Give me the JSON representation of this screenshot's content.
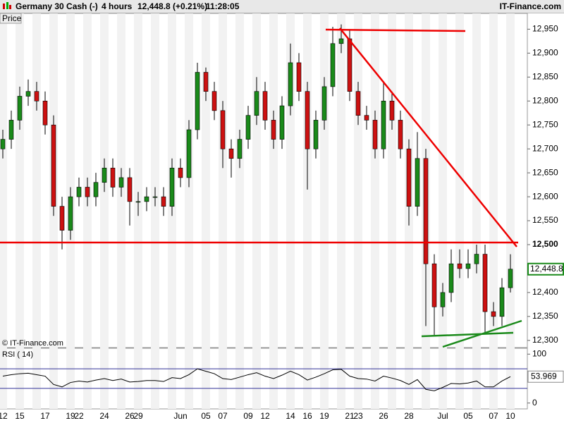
{
  "header": {
    "instrument": "Germany 30 Cash (-)",
    "interval": "4 hours",
    "quote": "12,448.8 (+0.21%)",
    "time": "11:28:05",
    "site": "IT-Finance.com"
  },
  "chart_data": [
    {
      "type": "candlestick",
      "axis_label": "Price",
      "watermark": "© IT-Finance.com",
      "categories": [
        "12",
        null,
        "15",
        null,
        null,
        "17",
        null,
        null,
        "19",
        "22",
        null,
        null,
        "24",
        null,
        null,
        "26",
        "29",
        null,
        null,
        null,
        null,
        "Jun",
        null,
        null,
        "05",
        null,
        "07",
        null,
        null,
        "09",
        null,
        "12",
        null,
        null,
        "14",
        null,
        "16",
        null,
        "19",
        null,
        null,
        "21",
        "23",
        null,
        null,
        "26",
        null,
        null,
        "28",
        null,
        null,
        null,
        "Jul",
        null,
        null,
        "05",
        null,
        null,
        "07",
        null,
        "10"
      ],
      "open": [
        12700,
        12720,
        12760,
        12810,
        12820,
        12800,
        12750,
        12580,
        12530,
        12600,
        12620,
        12600,
        12630,
        12660,
        12620,
        12640,
        12590,
        12590,
        12600,
        12600,
        12580,
        12660,
        12640,
        12740,
        12860,
        12820,
        12780,
        12700,
        12680,
        12720,
        12770,
        12820,
        12760,
        12720,
        12790,
        12880,
        12820,
        12700,
        12760,
        12830,
        12920,
        12930,
        12820,
        12770,
        12760,
        12700,
        12800,
        12760,
        12700,
        12580,
        12680,
        12460,
        12370,
        12400,
        12460,
        12450,
        12460,
        12480,
        12360,
        12350,
        12410
      ],
      "high": [
        12740,
        12780,
        12830,
        12845,
        12840,
        12820,
        12770,
        12600,
        12620,
        12640,
        12640,
        12650,
        12680,
        12680,
        12660,
        12660,
        12610,
        12620,
        12620,
        12620,
        12680,
        12680,
        12760,
        12880,
        12870,
        12840,
        12800,
        12720,
        12740,
        12790,
        12850,
        12840,
        12780,
        12810,
        12920,
        12900,
        12840,
        12780,
        12850,
        12955,
        12960,
        12950,
        12840,
        12790,
        12780,
        12840,
        12820,
        12780,
        12720,
        12735,
        12700,
        12480,
        12420,
        12490,
        12490,
        12490,
        12500,
        12500,
        12380,
        12430,
        12480
      ],
      "low": [
        12680,
        12700,
        12740,
        12790,
        12780,
        12730,
        12560,
        12490,
        12510,
        12580,
        12580,
        12580,
        12610,
        12600,
        12600,
        12540,
        12560,
        12570,
        12580,
        12560,
        12560,
        12620,
        12620,
        12720,
        12800,
        12760,
        12660,
        12640,
        12660,
        12700,
        12750,
        12740,
        12700,
        12700,
        12770,
        12800,
        12615,
        12680,
        12740,
        12810,
        12900,
        12800,
        12750,
        12740,
        12680,
        12680,
        12740,
        12680,
        12540,
        12560,
        12330,
        12310,
        12350,
        12380,
        12430,
        12430,
        12440,
        12315,
        12330,
        12330,
        12400
      ],
      "close": [
        12720,
        12760,
        12810,
        12820,
        12800,
        12750,
        12580,
        12530,
        12600,
        12620,
        12600,
        12630,
        12660,
        12620,
        12640,
        12590,
        12590,
        12600,
        12600,
        12580,
        12660,
        12640,
        12740,
        12860,
        12820,
        12780,
        12700,
        12680,
        12720,
        12770,
        12820,
        12760,
        12720,
        12790,
        12880,
        12820,
        12700,
        12760,
        12830,
        12920,
        12930,
        12820,
        12770,
        12760,
        12700,
        12800,
        12760,
        12700,
        12580,
        12680,
        12460,
        12370,
        12400,
        12460,
        12450,
        12460,
        12480,
        12360,
        12350,
        12410,
        12448.8
      ],
      "last_price": {
        "value": 12448.8,
        "label": "12,448.8"
      },
      "up_color": "#1a8a1a",
      "down_color": "#cc1111",
      "ylim": [
        12285,
        12983
      ],
      "yticks": [
        {
          "value": 12300,
          "label": "12,300"
        },
        {
          "value": 12350,
          "label": "12,350"
        },
        {
          "value": 12400,
          "label": "12,400"
        },
        {
          "value": 12450,
          "label": "12,450"
        },
        {
          "value": 12500,
          "label": "12,500"
        },
        {
          "value": 12550,
          "label": "12,550"
        },
        {
          "value": 12600,
          "label": "12,600"
        },
        {
          "value": 12650,
          "label": "12,650"
        },
        {
          "value": 12700,
          "label": "12,700"
        },
        {
          "value": 12750,
          "label": "12,750"
        },
        {
          "value": 12800,
          "label": "12,800"
        },
        {
          "value": 12850,
          "label": "12,850"
        },
        {
          "value": 12900,
          "label": "12,900"
        },
        {
          "value": 12950,
          "label": "12,950"
        }
      ]
    },
    {
      "type": "line",
      "title": "RSI ( 14)",
      "color": "#000000",
      "values": [
        55,
        58,
        60,
        61,
        58,
        55,
        38,
        33,
        42,
        45,
        43,
        47,
        50,
        46,
        49,
        43,
        44,
        46,
        46,
        44,
        52,
        50,
        58,
        70,
        65,
        60,
        50,
        48,
        53,
        58,
        62,
        55,
        50,
        57,
        65,
        58,
        47,
        53,
        60,
        68,
        69,
        55,
        50,
        49,
        45,
        55,
        51,
        46,
        38,
        48,
        28,
        25,
        32,
        40,
        39,
        41,
        45,
        33,
        33,
        45,
        53.969
      ],
      "bands": [
        30,
        70
      ],
      "band_color": "#333399",
      "ylim": [
        -12,
        112
      ],
      "yticks": [
        0,
        100
      ]
    }
  ]
}
